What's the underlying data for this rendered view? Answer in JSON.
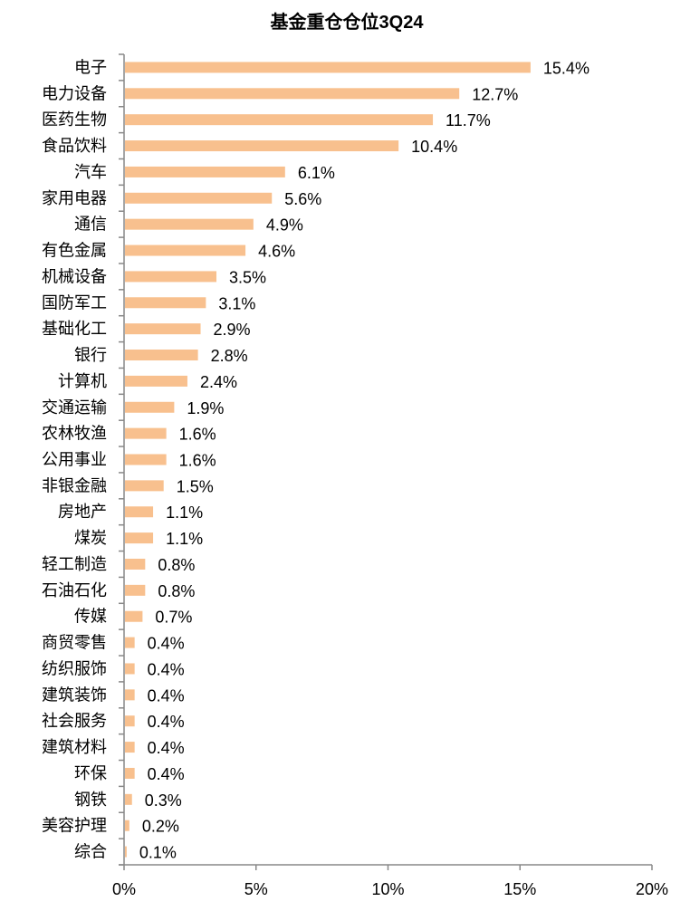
{
  "chart_data": {
    "type": "bar",
    "orientation": "horizontal",
    "title": "基金重仓仓位3Q24",
    "xlabel": "",
    "ylabel": "",
    "xlim": [
      0,
      20
    ],
    "x_ticks": [
      "0%",
      "5%",
      "10%",
      "15%",
      "20%"
    ],
    "x_tick_values": [
      0,
      5,
      10,
      15,
      20
    ],
    "grid": false,
    "legend": "none",
    "bar_color": "#F8C08E",
    "categories": [
      "电子",
      "电力设备",
      "医药生物",
      "食品饮料",
      "汽车",
      "家用电器",
      "通信",
      "有色金属",
      "机械设备",
      "国防军工",
      "基础化工",
      "银行",
      "计算机",
      "交通运输",
      "农林牧渔",
      "公用事业",
      "非银金融",
      "房地产",
      "煤炭",
      "轻工制造",
      "石油石化",
      "传媒",
      "商贸零售",
      "纺织服饰",
      "建筑装饰",
      "社会服务",
      "建筑材料",
      "环保",
      "钢铁",
      "美容护理",
      "综合"
    ],
    "values": [
      15.4,
      12.7,
      11.7,
      10.4,
      6.1,
      5.6,
      4.9,
      4.6,
      3.5,
      3.1,
      2.9,
      2.8,
      2.4,
      1.9,
      1.6,
      1.6,
      1.5,
      1.1,
      1.1,
      0.8,
      0.8,
      0.7,
      0.4,
      0.4,
      0.4,
      0.4,
      0.4,
      0.4,
      0.3,
      0.2,
      0.1
    ],
    "value_labels": [
      "15.4%",
      "12.7%",
      "11.7%",
      "10.4%",
      "6.1%",
      "5.6%",
      "4.9%",
      "4.6%",
      "3.5%",
      "3.1%",
      "2.9%",
      "2.8%",
      "2.4%",
      "1.9%",
      "1.6%",
      "1.6%",
      "1.5%",
      "1.1%",
      "1.1%",
      "0.8%",
      "0.8%",
      "0.7%",
      "0.4%",
      "0.4%",
      "0.4%",
      "0.4%",
      "0.4%",
      "0.4%",
      "0.3%",
      "0.2%",
      "0.1%"
    ]
  }
}
